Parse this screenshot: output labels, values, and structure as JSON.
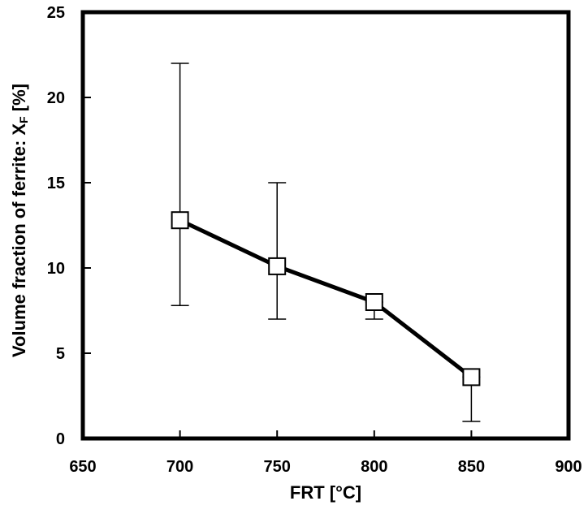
{
  "chart_data": {
    "type": "line",
    "title": "",
    "xlabel": "FRT [°C]",
    "ylabel": {
      "main": "Volume fraction of ferrite: X",
      "subscript": "F",
      "suffix": " [%]"
    },
    "xlim": [
      650,
      900
    ],
    "ylim": [
      0,
      25
    ],
    "xticks": [
      650,
      700,
      750,
      800,
      850,
      900
    ],
    "yticks": [
      0,
      5,
      10,
      15,
      20,
      25
    ],
    "grid": false,
    "legend": "none",
    "series": [
      {
        "x": [
          700,
          750,
          800,
          850
        ],
        "y": [
          12.8,
          10.1,
          8.0,
          3.6
        ],
        "error_low": [
          7.8,
          7.0,
          7.0,
          1.0
        ],
        "error_high": [
          22.0,
          15.0,
          8.0,
          3.6
        ],
        "marker": "open-square",
        "line_color": "#000000"
      }
    ]
  }
}
